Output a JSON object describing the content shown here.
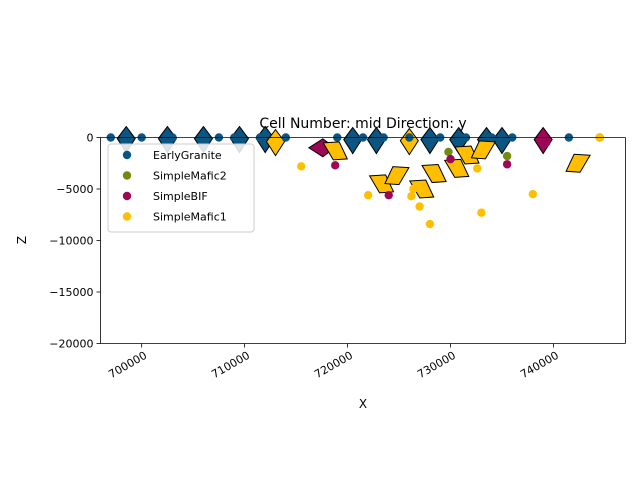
{
  "chart_data": {
    "type": "scatter",
    "title": "Cell Number: mid Direction: y",
    "xlabel": "X",
    "ylabel": "Z",
    "xlim": [
      696000,
      747000
    ],
    "ylim": [
      -20000,
      0
    ],
    "xticks": [
      700000,
      710000,
      720000,
      730000,
      740000
    ],
    "xtick_labels": [
      "700000",
      "710000",
      "720000",
      "730000",
      "740000"
    ],
    "yticks": [
      0,
      -5000,
      -10000,
      -15000,
      -20000
    ],
    "ytick_labels": [
      "0",
      "−5000",
      "−10000",
      "−15000",
      "−20000"
    ],
    "xtick_rotation": "30deg",
    "legend_position": "upper-left",
    "series": [
      {
        "name": "EarlyGranite",
        "color": "#0b5582",
        "points": [
          [
            697000,
            0
          ],
          [
            700000,
            0
          ],
          [
            703000,
            0
          ],
          [
            707500,
            0
          ],
          [
            709000,
            0
          ],
          [
            711500,
            0
          ],
          [
            714000,
            0
          ],
          [
            719000,
            0
          ],
          [
            721500,
            0
          ],
          [
            723500,
            0
          ],
          [
            726000,
            0
          ],
          [
            729000,
            0
          ],
          [
            731500,
            0
          ],
          [
            734000,
            0
          ],
          [
            736000,
            0
          ],
          [
            741500,
            0
          ],
          [
            744500,
            0
          ]
        ],
        "orientations": [
          {
            "x": 698500,
            "z": -100,
            "dir": "down"
          },
          {
            "x": 702500,
            "z": -100,
            "dir": "down"
          },
          {
            "x": 706000,
            "z": -100,
            "dir": "down"
          },
          {
            "x": 709500,
            "z": -100,
            "dir": "down"
          },
          {
            "x": 712000,
            "z": -100,
            "dir": "down"
          },
          {
            "x": 720500,
            "z": -200,
            "dir": "down"
          },
          {
            "x": 722800,
            "z": -200,
            "dir": "down"
          },
          {
            "x": 728000,
            "z": -200,
            "dir": "down"
          },
          {
            "x": 730800,
            "z": -200,
            "dir": "down"
          },
          {
            "x": 733500,
            "z": -200,
            "dir": "down"
          },
          {
            "x": 735000,
            "z": -200,
            "dir": "down"
          }
        ]
      },
      {
        "name": "SimpleMafic2",
        "color": "#6f8c0f",
        "points": [
          [
            729800,
            -1400
          ],
          [
            735500,
            -1800
          ]
        ],
        "orientations": []
      },
      {
        "name": "SimpleBIF",
        "color": "#9e0756",
        "points": [
          [
            718800,
            -2700
          ],
          [
            724000,
            -5600
          ],
          [
            730000,
            -2100
          ],
          [
            735500,
            -2600
          ],
          [
            739300,
            -500
          ]
        ],
        "orientations": [
          {
            "x": 717600,
            "z": -1000,
            "dir": "left"
          },
          {
            "x": 739000,
            "z": -200,
            "dir": "down"
          }
        ]
      },
      {
        "name": "SimpleMafic1",
        "color": "#ffbe00",
        "points": [
          [
            715500,
            -2800
          ],
          [
            722000,
            -5600
          ],
          [
            726200,
            -5700
          ],
          [
            726400,
            -5000
          ],
          [
            727000,
            -6700
          ],
          [
            728000,
            -8400
          ],
          [
            732600,
            -3000
          ],
          [
            733000,
            -7300
          ],
          [
            738000,
            -5500
          ],
          [
            744500,
            0
          ]
        ],
        "orientations": [
          {
            "x": 713000,
            "z": -400,
            "dir": "down"
          },
          {
            "x": 719000,
            "z": -1300,
            "dir": "up-left"
          },
          {
            "x": 723500,
            "z": -4500,
            "dir": "up-left"
          },
          {
            "x": 724600,
            "z": -3700,
            "dir": "up-right"
          },
          {
            "x": 727400,
            "z": -5000,
            "dir": "up-left"
          },
          {
            "x": 728600,
            "z": -3500,
            "dir": "up-left"
          },
          {
            "x": 730800,
            "z": -3000,
            "dir": "up-left"
          },
          {
            "x": 731800,
            "z": -1700,
            "dir": "up-left"
          },
          {
            "x": 733000,
            "z": -1200,
            "dir": "up-right"
          },
          {
            "x": 742200,
            "z": -2500,
            "dir": "up-right"
          },
          {
            "x": 726000,
            "z": -300,
            "dir": "down"
          }
        ]
      }
    ]
  }
}
